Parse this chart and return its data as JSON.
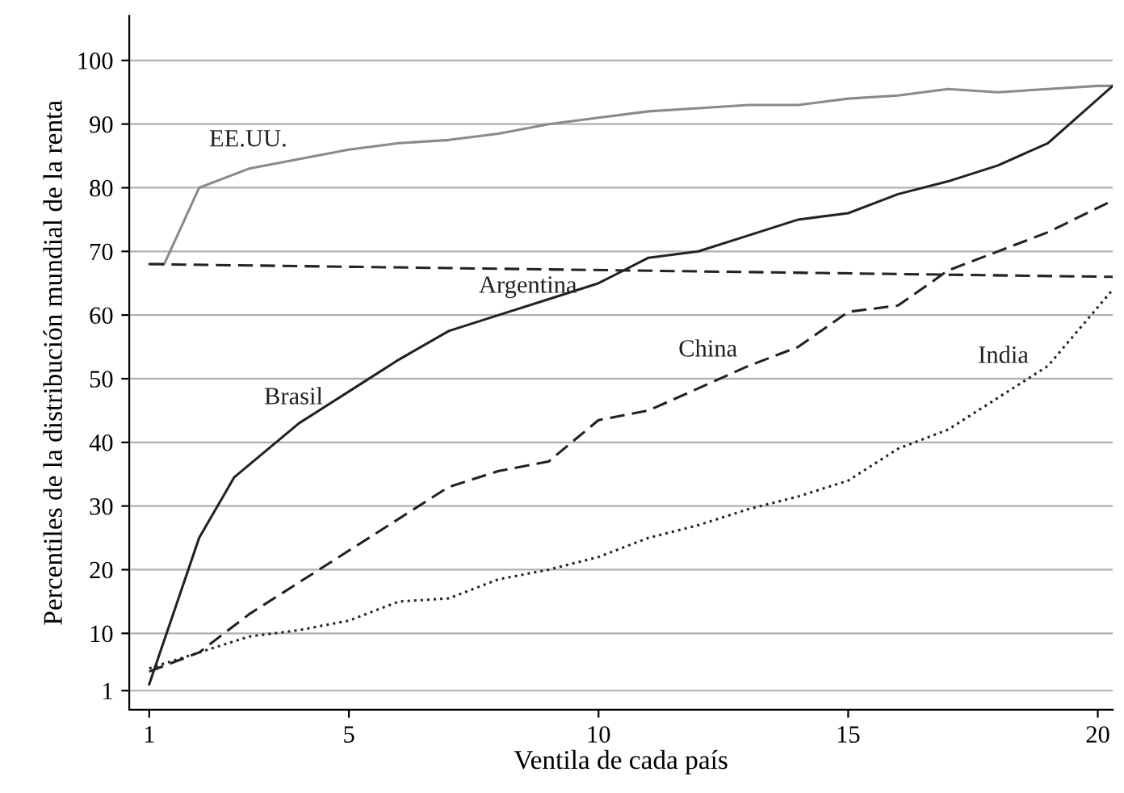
{
  "chart_data": {
    "type": "line",
    "xlabel": "Ventila de cada país",
    "ylabel": "Percentiles de la distribución mundial de la renta",
    "xlim": [
      0.6,
      20.3
    ],
    "xticks": [
      1,
      5,
      10,
      15,
      20
    ],
    "ylim": [
      -2,
      107
    ],
    "yticks": [
      1,
      10,
      20,
      30,
      40,
      50,
      60,
      70,
      80,
      90,
      100
    ],
    "grid": "y",
    "legend": false,
    "series": [
      {
        "name": "EE.UU.",
        "color": "#8a8a8a",
        "line_style": "solid",
        "x": [
          1,
          1.3,
          2,
          3,
          4,
          5,
          6,
          7,
          8,
          9,
          10,
          11,
          12,
          13,
          14,
          15,
          16,
          17,
          18,
          19,
          20,
          20.3
        ],
        "values": [
          68,
          68,
          80,
          83,
          84.5,
          86,
          87,
          87.5,
          88.5,
          90,
          91,
          92,
          92.5,
          93,
          93,
          94,
          94.5,
          95.5,
          95,
          95.5,
          96,
          96
        ]
      },
      {
        "name": "Argentina",
        "color": "#222222",
        "line_style": "dashed",
        "x": [
          1,
          20.3
        ],
        "values": [
          68,
          66
        ]
      },
      {
        "name": "Brasil",
        "color": "#222222",
        "line_style": "solid",
        "x": [
          1,
          2,
          2.7,
          4,
          5.2,
          6,
          7,
          8,
          9,
          10,
          11,
          12,
          13,
          14,
          15,
          16,
          17,
          18,
          19,
          20.3
        ],
        "values": [
          2,
          25,
          34.5,
          43,
          49,
          53,
          57.5,
          60,
          62.5,
          65,
          69,
          70,
          72.5,
          75,
          76,
          79,
          81,
          83.5,
          87,
          96
        ]
      },
      {
        "name": "China",
        "color": "#222222",
        "line_style": "dashed",
        "x": [
          1,
          2,
          3,
          4,
          5,
          6,
          7,
          8,
          9,
          10,
          11,
          12,
          13,
          14,
          15,
          16,
          17,
          18,
          19,
          20.3
        ],
        "values": [
          4,
          7,
          13,
          18,
          23,
          28,
          33,
          35.5,
          37,
          43.5,
          45,
          48.5,
          52,
          55,
          60.5,
          61.5,
          67,
          70,
          73,
          78
        ]
      },
      {
        "name": "India",
        "color": "#222222",
        "line_style": "dotted",
        "x": [
          1,
          2,
          3,
          4,
          5,
          6,
          7,
          8,
          9,
          10,
          11,
          12,
          13,
          14,
          15,
          16,
          17,
          18,
          19,
          20.3
        ],
        "values": [
          4.5,
          7,
          9.5,
          10.5,
          12,
          15,
          15.5,
          18.5,
          20,
          22,
          25,
          27,
          29.5,
          31.5,
          34,
          39,
          42,
          47,
          52,
          64
        ]
      }
    ]
  }
}
